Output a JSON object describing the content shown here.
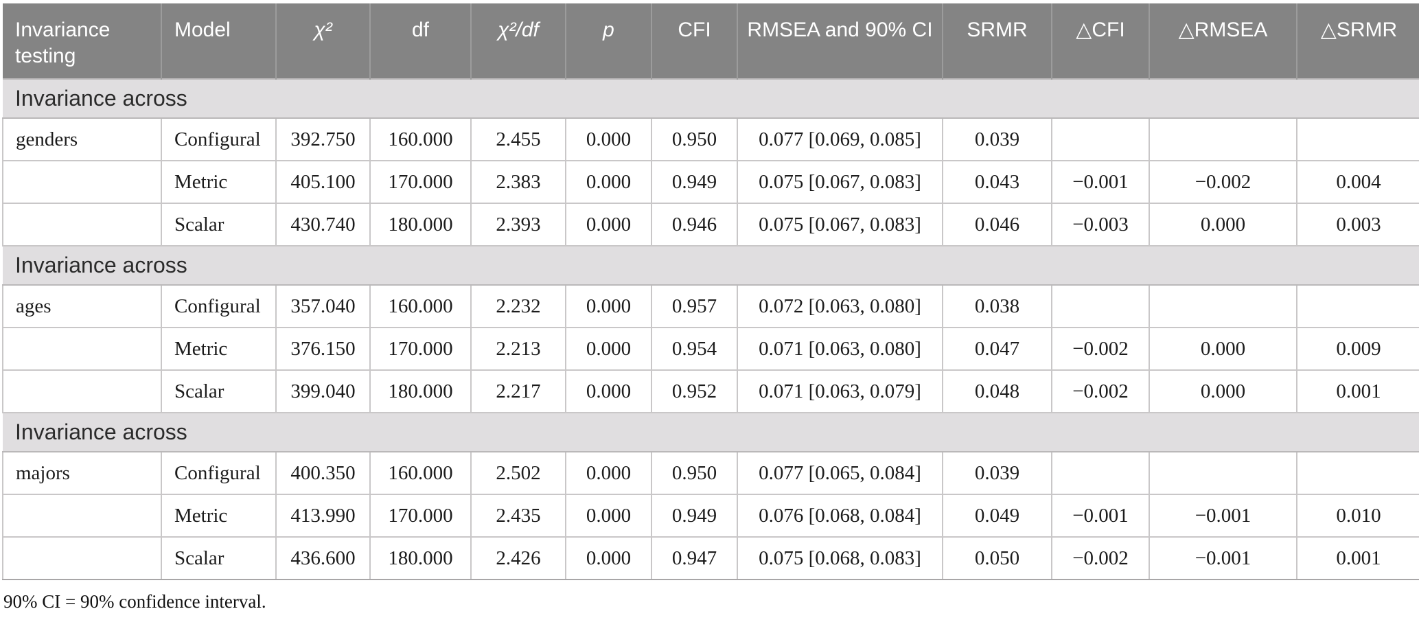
{
  "colors": {
    "header_background": "#848484",
    "header_text": "#ffffff",
    "header_divider": "#9c9c9c",
    "section_background": "#e0dee0",
    "body_border": "#c9c7c8",
    "bottom_rule": "#a8a6a7"
  },
  "table": {
    "columns": [
      {
        "id": "invariance_testing",
        "label": "Invariance testing",
        "align": "left",
        "italic": false
      },
      {
        "id": "model",
        "label": "Model",
        "align": "left",
        "italic": false
      },
      {
        "id": "chi2",
        "label": "χ²",
        "align": "center",
        "italic": true
      },
      {
        "id": "df",
        "label": "df",
        "align": "center",
        "italic": false
      },
      {
        "id": "chi2_df",
        "label": "χ²/df",
        "align": "center",
        "italic": true
      },
      {
        "id": "p",
        "label": "p",
        "align": "center",
        "italic": true
      },
      {
        "id": "cfi",
        "label": "CFI",
        "align": "center",
        "italic": false
      },
      {
        "id": "rmsea_ci",
        "label": "RMSEA and 90% CI",
        "align": "center",
        "italic": false
      },
      {
        "id": "srmr",
        "label": "SRMR",
        "align": "center",
        "italic": false
      },
      {
        "id": "delta_cfi",
        "label": "△CFI",
        "align": "center",
        "italic": false
      },
      {
        "id": "delta_rmsea",
        "label": "△RMSEA",
        "align": "center",
        "italic": false
      },
      {
        "id": "delta_srmr",
        "label": "△SRMR",
        "align": "center",
        "italic": false
      }
    ],
    "sections": [
      {
        "header": "Invariance across",
        "rows": [
          [
            "genders",
            "Configural",
            "392.750",
            "160.000",
            "2.455",
            "0.000",
            "0.950",
            "0.077 [0.069, 0.085]",
            "0.039",
            "",
            "",
            ""
          ],
          [
            "",
            "Metric",
            "405.100",
            "170.000",
            "2.383",
            "0.000",
            "0.949",
            "0.075 [0.067, 0.083]",
            "0.043",
            "−0.001",
            "−0.002",
            "0.004"
          ],
          [
            "",
            "Scalar",
            "430.740",
            "180.000",
            "2.393",
            "0.000",
            "0.946",
            "0.075 [0.067, 0.083]",
            "0.046",
            "−0.003",
            "0.000",
            "0.003"
          ]
        ]
      },
      {
        "header": "Invariance across",
        "rows": [
          [
            "ages",
            "Configural",
            "357.040",
            "160.000",
            "2.232",
            "0.000",
            "0.957",
            "0.072 [0.063, 0.080]",
            "0.038",
            "",
            "",
            ""
          ],
          [
            "",
            "Metric",
            "376.150",
            "170.000",
            "2.213",
            "0.000",
            "0.954",
            "0.071 [0.063, 0.080]",
            "0.047",
            "−0.002",
            "0.000",
            "0.009"
          ],
          [
            "",
            "Scalar",
            "399.040",
            "180.000",
            "2.217",
            "0.000",
            "0.952",
            "0.071 [0.063, 0.079]",
            "0.048",
            "−0.002",
            "0.000",
            "0.001"
          ]
        ]
      },
      {
        "header": "Invariance across",
        "rows": [
          [
            "majors",
            "Configural",
            "400.350",
            "160.000",
            "2.502",
            "0.000",
            "0.950",
            "0.077 [0.065, 0.084]",
            "0.039",
            "",
            "",
            ""
          ],
          [
            "",
            "Metric",
            "413.990",
            "170.000",
            "2.435",
            "0.000",
            "0.949",
            "0.076 [0.068, 0.084]",
            "0.049",
            "−0.001",
            "−0.001",
            "0.010"
          ],
          [
            "",
            "Scalar",
            "436.600",
            "180.000",
            "2.426",
            "0.000",
            "0.947",
            "0.075 [0.068, 0.083]",
            "0.050",
            "−0.002",
            "−0.001",
            "0.001"
          ]
        ]
      }
    ],
    "footnote": "90% CI = 90% confidence interval."
  }
}
